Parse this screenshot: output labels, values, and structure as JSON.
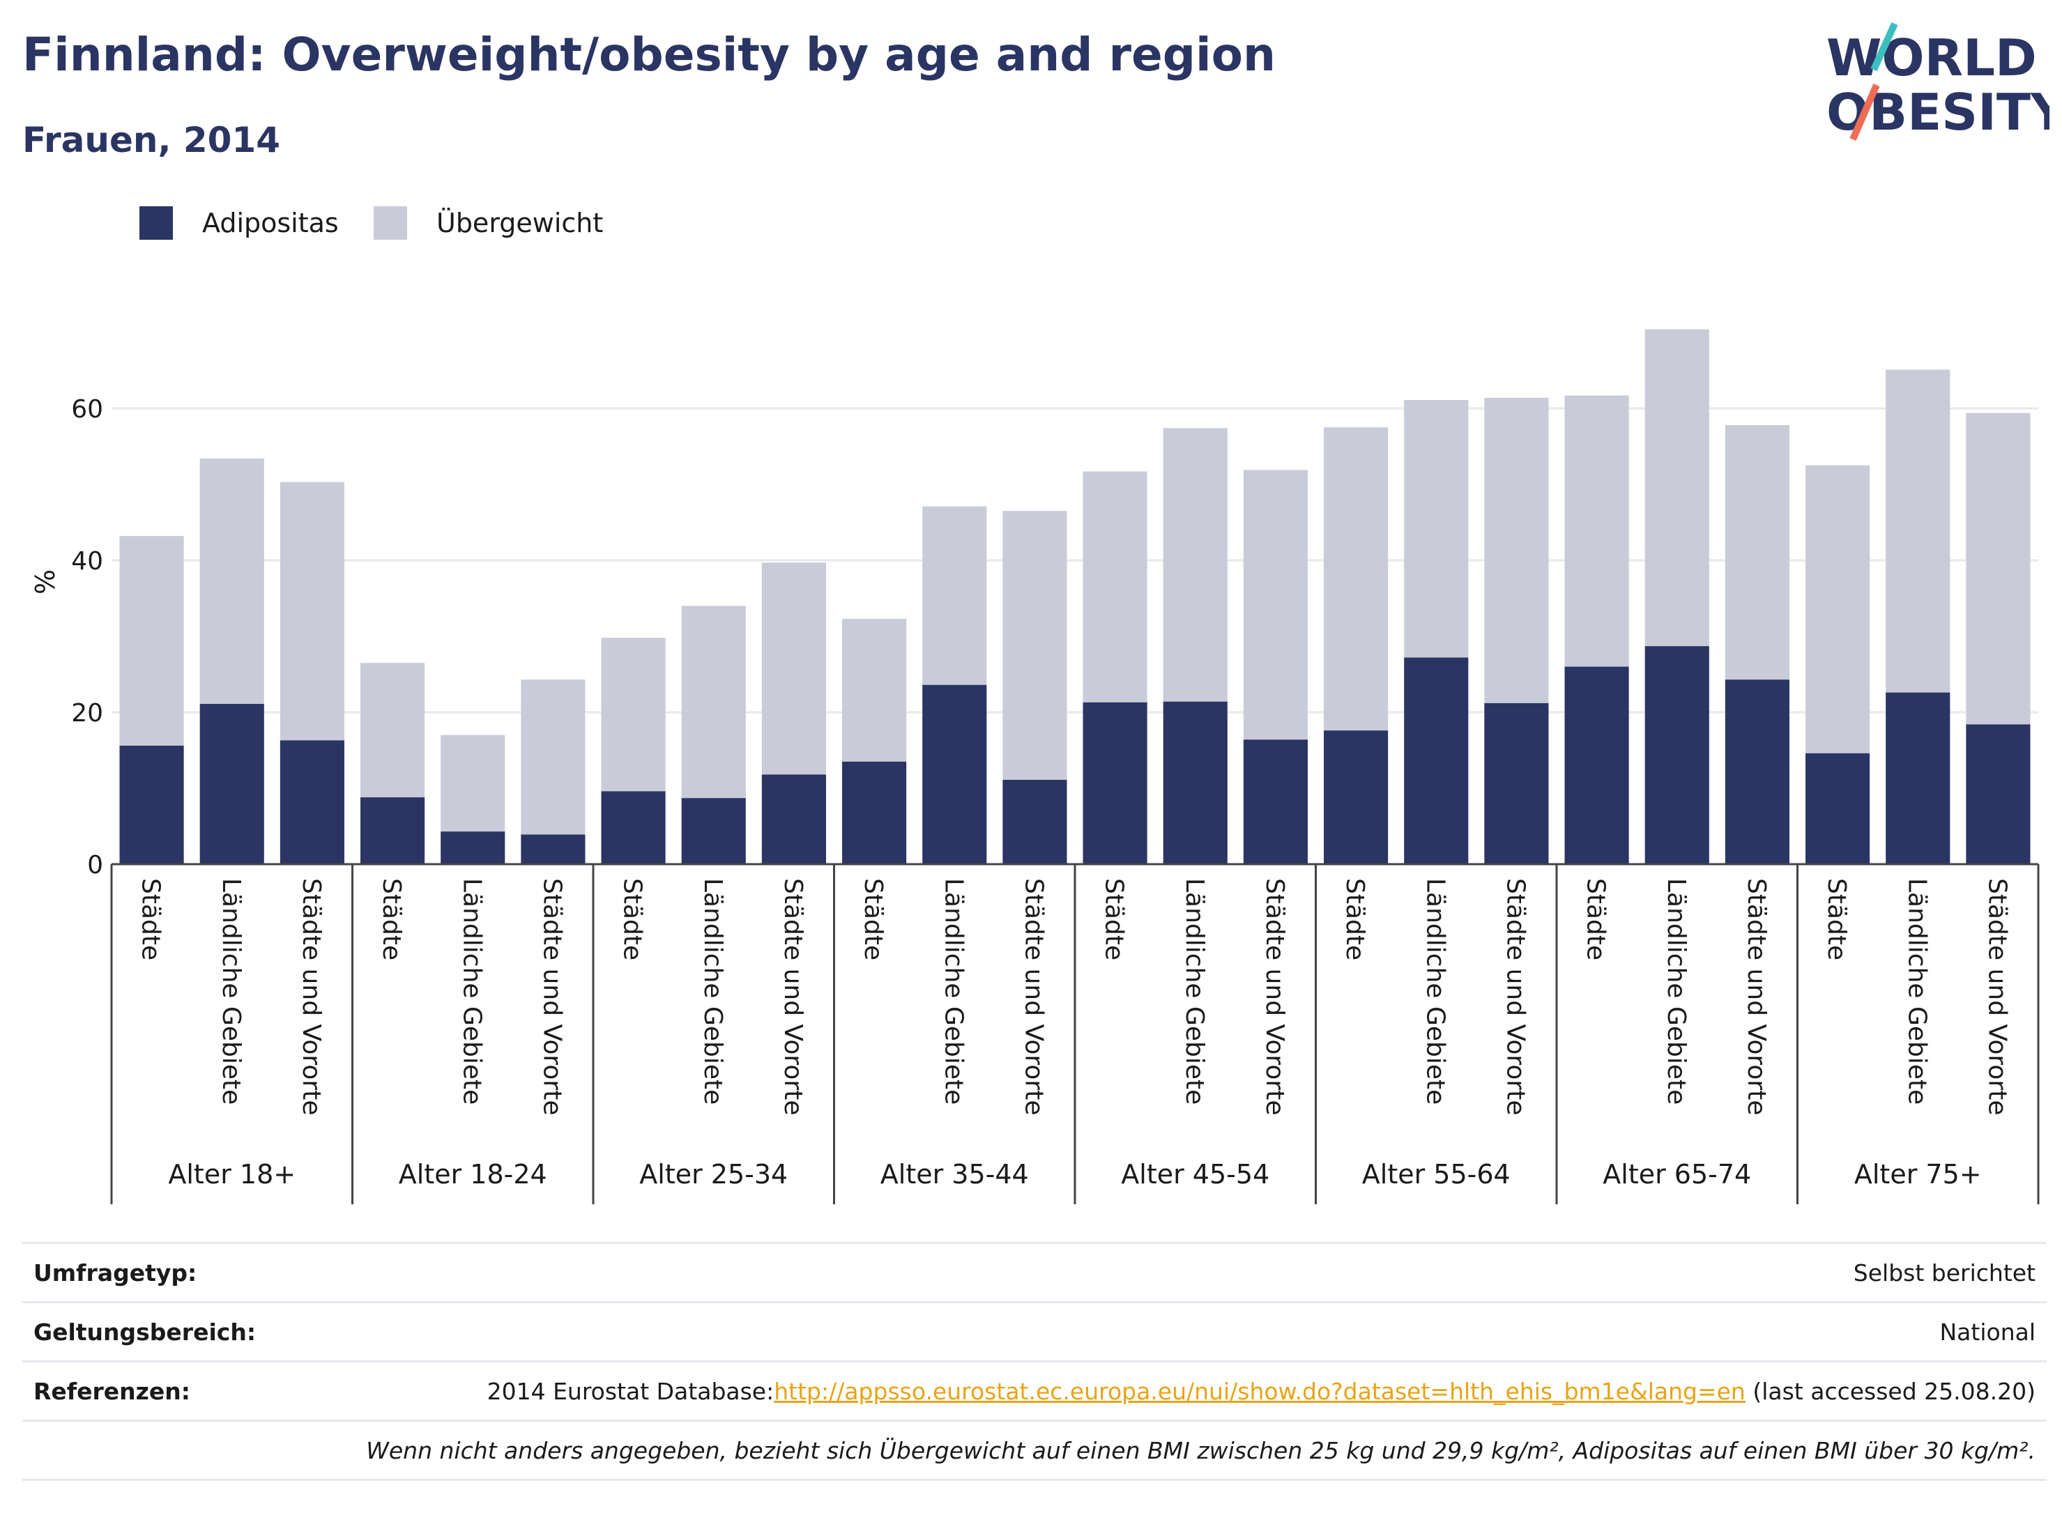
{
  "header": {
    "title": "Finnland: Overweight/obesity by age and region",
    "subtitle": "Frauen, 2014"
  },
  "logo": {
    "line1": "WORLD",
    "line2": "OBESITY"
  },
  "colors": {
    "obesity": "#2b3563",
    "overweight": "#c9ccd8",
    "accent": "#2b3563",
    "link": "#e8a316"
  },
  "legend": [
    {
      "label": "Adipositas",
      "color": "#2b3563"
    },
    {
      "label": "Übergewicht",
      "color": "#c9ccd8"
    }
  ],
  "chart_data": {
    "type": "bar",
    "stacked": true,
    "ylabel": "%",
    "ylim": [
      0,
      75
    ],
    "yticks": [
      0,
      20,
      40,
      60
    ],
    "grid": true,
    "legend_position": "top-left",
    "groups": [
      "Alter 18+",
      "Alter 18-24",
      "Alter 25-34",
      "Alter 35-44",
      "Alter 45-54",
      "Alter 55-64",
      "Alter 65-74",
      "Alter 75+"
    ],
    "subcategories": [
      "Städte",
      "Ländliche Gebiete",
      "Städte und Vororte"
    ],
    "series": [
      {
        "name": "Adipositas",
        "values": [
          15.6,
          21.1,
          16.3,
          8.8,
          4.3,
          3.9,
          9.6,
          8.7,
          11.8,
          13.5,
          23.6,
          11.1,
          21.3,
          21.4,
          16.4,
          17.6,
          27.2,
          21.2,
          26.0,
          28.7,
          24.3,
          14.6,
          22.6,
          18.4
        ]
      },
      {
        "name": "Übergewicht",
        "values": [
          27.6,
          32.3,
          34.0,
          17.7,
          12.7,
          20.4,
          20.2,
          25.3,
          27.9,
          18.8,
          23.5,
          35.4,
          30.4,
          36.0,
          35.5,
          39.9,
          33.9,
          40.2,
          35.7,
          41.7,
          33.5,
          37.9,
          42.5,
          41.0
        ]
      }
    ]
  },
  "meta": {
    "rows": [
      {
        "key": "Umfragetyp:",
        "value": "Selbst berichtet"
      },
      {
        "key": "Geltungsbereich:",
        "value": "National"
      }
    ],
    "references": {
      "key": "Referenzen:",
      "prefix": "2014 Eurostat Database:",
      "link": "http://appsso.eurostat.ec.europa.eu/nui/show.do?dataset=hlth_ehis_bm1e&lang=en",
      "suffix": " (last accessed 25.08.20)"
    },
    "note": "Wenn nicht anders angegeben, bezieht sich Übergewicht auf einen BMI zwischen 25 kg und 29,9 kg/m², Adipositas auf einen BMI über 30 kg/m²."
  }
}
